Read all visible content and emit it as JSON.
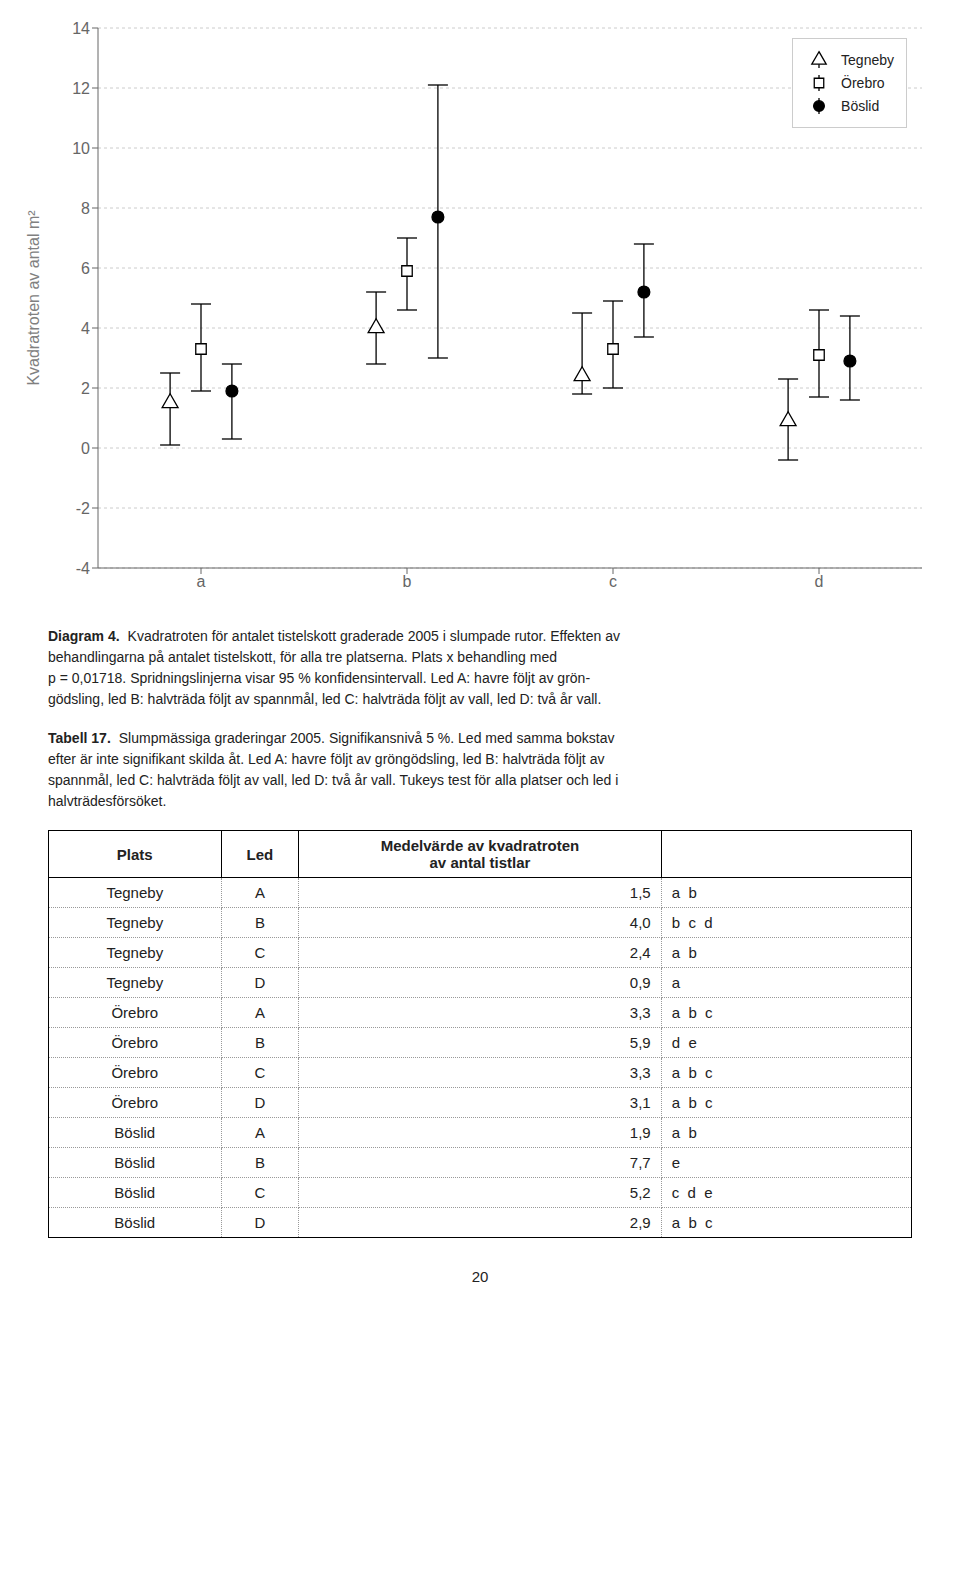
{
  "chart_data": {
    "type": "scatter",
    "y_label": "Kvadratroten av antal m²",
    "categories": [
      "a",
      "b",
      "c",
      "d"
    ],
    "ylim": [
      -4,
      14
    ],
    "yticks": [
      -4,
      -2,
      0,
      2,
      4,
      6,
      8,
      10,
      12,
      14
    ],
    "grid": true,
    "legend": "upper right",
    "series": [
      {
        "name": "Tegneby",
        "marker": "triangle",
        "color": "white",
        "values": [
          1.5,
          4.0,
          2.4,
          0.9
        ],
        "ci_lower": [
          0.1,
          2.8,
          1.8,
          -0.4
        ],
        "ci_upper": [
          2.5,
          5.2,
          4.5,
          2.3
        ]
      },
      {
        "name": "Örebro",
        "marker": "square",
        "color": "white",
        "values": [
          3.3,
          5.9,
          3.3,
          3.1
        ],
        "ci_lower": [
          1.9,
          4.6,
          2.0,
          1.7
        ],
        "ci_upper": [
          4.8,
          7.0,
          4.9,
          4.6
        ]
      },
      {
        "name": "Böslid",
        "marker": "circle",
        "color": "black",
        "values": [
          1.9,
          7.7,
          5.2,
          2.9
        ],
        "ci_lower": [
          0.3,
          3.0,
          3.7,
          1.6
        ],
        "ci_upper": [
          2.8,
          12.1,
          6.8,
          4.4
        ]
      }
    ],
    "annotations": [
      {
        "label": "Diagram 4.",
        "lines": [
          "Kvadratroten för antalet tistelskott graderade 2005 i slumpade rutor. Effekten av",
          "behandlingarna på antalet tistelskott, för alla tre platserna. Plats x behandling med",
          "p = 0,01718. Spridningslinjerna visar 95 % konfidensintervall. Led A: havre följt av grön-",
          "gödsling, led B: halvträda följt av spannmål, led C: halvträda följt av vall, led D: två år vall."
        ]
      },
      {
        "label": "Tabell 17.",
        "lines": [
          "Slumpmässiga graderingar 2005. Signifikansnivå 5 %. Led med samma bokstav",
          "efter är inte signifikant skilda åt. Led A: havre följt av gröngödsling, led B: halvträda följt av",
          "spannmål, led C: halvträda följt av vall, led D: två år vall. Tukeys test för alla platser och led i",
          "halvträdesförsöket."
        ]
      }
    ],
    "table": {
      "columns": [
        "Plats",
        "Led",
        "Medelvärde av kvadratroten\nav antal tistlar"
      ],
      "rows": [
        [
          "Tegneby",
          "A",
          "1,5",
          "a  b"
        ],
        [
          "Tegneby",
          "B",
          "4,0",
          "b  c  d"
        ],
        [
          "Tegneby",
          "C",
          "2,4",
          "a  b"
        ],
        [
          "Tegneby",
          "D",
          "0,9",
          "a"
        ],
        [
          "Örebro",
          "A",
          "3,3",
          "a  b  c"
        ],
        [
          "Örebro",
          "B",
          "5,9",
          "d  e"
        ],
        [
          "Örebro",
          "C",
          "3,3",
          "a  b  c"
        ],
        [
          "Örebro",
          "D",
          "3,1",
          "a  b  c"
        ],
        [
          "Böslid",
          "A",
          "1,9",
          "a  b"
        ],
        [
          "Böslid",
          "B",
          "7,7",
          "e"
        ],
        [
          "Böslid",
          "C",
          "5,2",
          "c  d  e"
        ],
        [
          "Böslid",
          "D",
          "2,9",
          "a  b  c"
        ]
      ]
    },
    "page_number": "20"
  }
}
